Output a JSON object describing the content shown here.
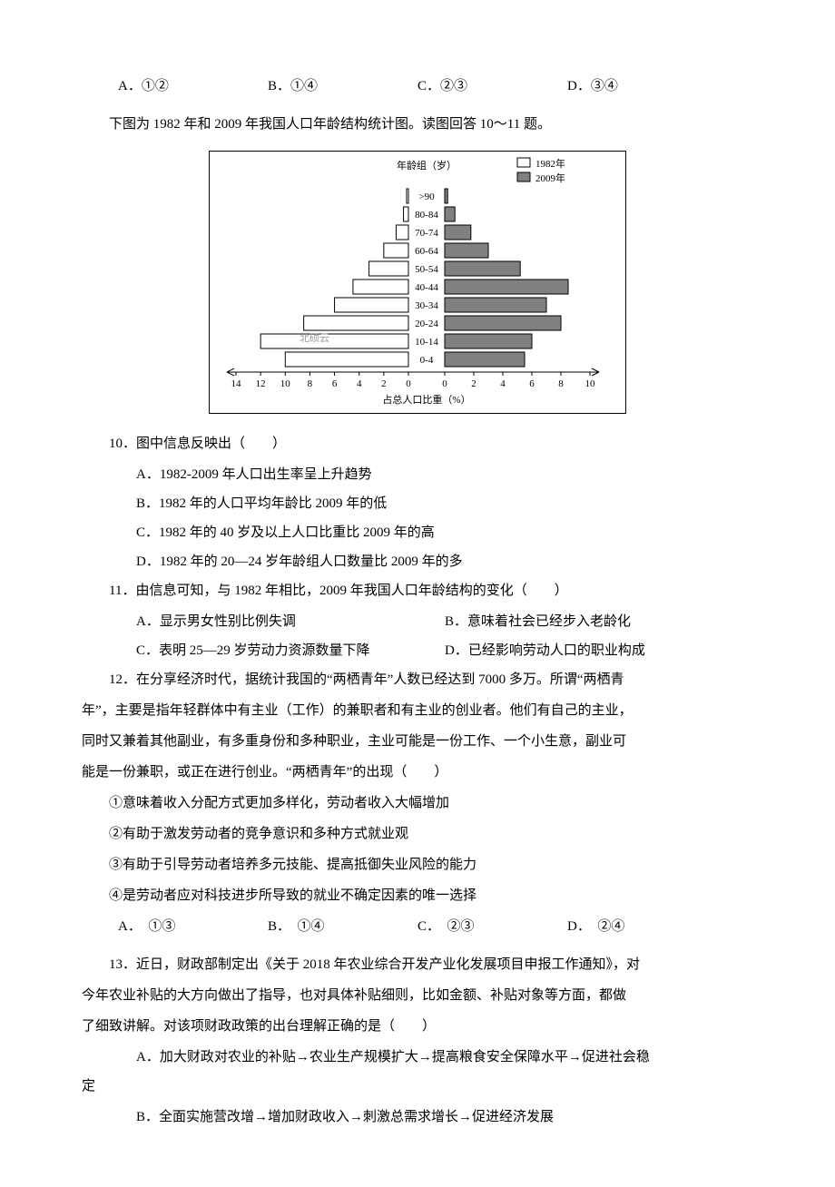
{
  "top_options": {
    "a": "A．①②",
    "b": "B．①④",
    "c": "C．②③",
    "d": "D．③④"
  },
  "intro_text": "下图为 1982 年和 2009 年我国人口年龄结构统计图。读图回答 10～11 题。",
  "chart": {
    "type": "population-pyramid",
    "legend": {
      "left_label": "1982年",
      "right_label": "2009年"
    },
    "y_title": "年龄组（岁）",
    "x_title": "占总人口比重（%）",
    "groups": [
      ">90",
      "80-84",
      "70-74",
      "60-64",
      "50-54",
      "40-44",
      "30-34",
      "20-24",
      "10-14",
      "0-4"
    ],
    "left_ticks": [
      14,
      12,
      10,
      8,
      6,
      4,
      2,
      0
    ],
    "right_ticks": [
      0,
      2,
      4,
      6,
      8,
      10
    ],
    "left_values_1982": [
      0.15,
      0.4,
      1.0,
      2.0,
      3.2,
      4.5,
      6.0,
      8.5,
      12.0,
      10.0
    ],
    "right_values_2009": [
      0.2,
      0.7,
      1.8,
      3.0,
      5.2,
      8.5,
      7.0,
      8.0,
      6.0,
      5.5
    ],
    "bar_fill_left": "#ffffff",
    "bar_fill_right": "#808080",
    "bar_border": "#000000",
    "axis_color": "#000000",
    "text_color": "#000000",
    "watermark": "北硕云",
    "label_fontsize": 11,
    "tick_fontsize": 11
  },
  "q10": {
    "stem": "10．图中信息反映出（　　）",
    "a": "A．1982-2009 年人口出生率呈上升趋势",
    "b": "B．1982 年的人口平均年龄比 2009 年的低",
    "c": "C．1982 年的 40 岁及以上人口比重比 2009 年的高",
    "d": "D．1982 年的 20—24 岁年龄组人口数量比 2009 年的多"
  },
  "q11": {
    "stem": "11．由信息可知，与 1982 年相比，2009 年我国人口年龄结构的变化（　　）",
    "a": "A．显示男女性别比例失调",
    "b": "B．意味着社会已经步入老龄化",
    "c": "C．表明 25—29 岁劳动力资源数量下降",
    "d": "D．已经影响劳动人口的职业构成"
  },
  "q12": {
    "stem1": "12．在分享经济时代，据统计我国的“两栖青年”人数已经达到 7000 多万。所谓“两栖青",
    "stem2": "年”，主要是指年轻群体中有主业（工作）的兼职者和有主业的创业者。他们有自己的主业，",
    "stem3": "同时又兼着其他副业，有多重身份和多种职业，主业可能是一份工作、一个小生意，副业可",
    "stem4": "能是一份兼职，或正在进行创业。“两栖青年”的出现（　　）",
    "c1": "①意味着收入分配方式更加多样化，劳动者收入大幅增加",
    "c2": "②有助于激发劳动者的竞争意识和多种方式就业观",
    "c3": "③有助于引导劳动者培养多元技能、提高抵御失业风险的能力",
    "c4": "④是劳动者应对科技进步所导致的就业不确定因素的唯一选择",
    "opts": {
      "a": "A．　①③",
      "b": "B．　①④",
      "c": "C．　②③",
      "d": "D．　②④"
    }
  },
  "q13": {
    "stem1": "13．近日，财政部制定出《关于 2018 年农业综合开发产业化发展项目申报工作通知》，对",
    "stem2": "今年农业补贴的大方向做出了指导，也对具体补贴细则，比如金额、补贴对象等方面，都做",
    "stem3": "了细致讲解。对该项财政政策的出台理解正确的是（　　）",
    "a1": "A．加大财政对农业的补贴→农业生产规模扩大→提高粮食安全保障水平→促进社会稳",
    "a2": "定",
    "b": "B．全面实施营改增→增加财政收入→刺激总需求增长→促进经济发展"
  }
}
